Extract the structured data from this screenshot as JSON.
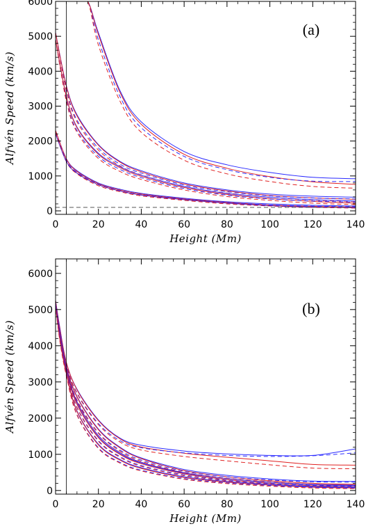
{
  "chart_data": [
    {
      "type": "line",
      "panel_label": "(a)",
      "xlabel": "Height (Mm)",
      "ylabel": "Alfvén Speed (km/s)",
      "xlim": [
        0,
        140
      ],
      "ylim": [
        -100,
        6000
      ],
      "xticks": [
        0,
        20,
        40,
        60,
        80,
        100,
        120,
        140
      ],
      "yticks": [
        0,
        1000,
        2000,
        3000,
        4000,
        5000,
        6000
      ],
      "vline_x": 5,
      "colors": {
        "blue": "#2a2aff",
        "red": "#e02020",
        "purple": "#5a18b0",
        "gray": "#555555"
      },
      "series": [
        {
          "color": "blue",
          "dash": false,
          "x": [
            0,
            3,
            5,
            10,
            15,
            20,
            30,
            40,
            60,
            80,
            100,
            120,
            140
          ],
          "values": [
            6000,
            6000,
            6000,
            6000,
            6000,
            5100,
            3450,
            2550,
            1700,
            1320,
            1100,
            960,
            920
          ]
        },
        {
          "color": "red",
          "dash": false,
          "x": [
            0,
            3,
            5,
            10,
            15,
            20,
            30,
            40,
            60,
            80,
            100,
            120,
            140
          ],
          "values": [
            6000,
            6000,
            6000,
            6000,
            6000,
            5050,
            3400,
            2480,
            1620,
            1220,
            980,
            830,
            760
          ]
        },
        {
          "color": "blue",
          "dash": true,
          "x": [
            0,
            3,
            5,
            10,
            15,
            20,
            30,
            40,
            60,
            80,
            100,
            120,
            140
          ],
          "values": [
            6000,
            6000,
            6000,
            6000,
            6000,
            4900,
            3280,
            2380,
            1560,
            1180,
            960,
            850,
            840
          ]
        },
        {
          "color": "red",
          "dash": true,
          "x": [
            0,
            3,
            5,
            10,
            15,
            20,
            30,
            40,
            60,
            80,
            100,
            120,
            140
          ],
          "values": [
            6000,
            6000,
            6000,
            6000,
            6000,
            4750,
            3150,
            2250,
            1450,
            1060,
            840,
            700,
            650
          ]
        },
        {
          "color": "blue",
          "dash": false,
          "x": [
            0,
            5,
            10,
            20,
            30,
            40,
            60,
            80,
            100,
            120,
            140
          ],
          "values": [
            5100,
            3600,
            2750,
            1900,
            1420,
            1150,
            800,
            600,
            480,
            420,
            390
          ]
        },
        {
          "color": "red",
          "dash": false,
          "x": [
            0,
            5,
            10,
            20,
            30,
            40,
            60,
            80,
            100,
            120,
            140
          ],
          "values": [
            5100,
            3580,
            2720,
            1880,
            1400,
            1120,
            770,
            570,
            440,
            370,
            330
          ]
        },
        {
          "color": "blue",
          "dash": true,
          "x": [
            0,
            5,
            10,
            20,
            30,
            40,
            60,
            80,
            100,
            120,
            140
          ],
          "values": [
            5100,
            3500,
            2600,
            1800,
            1340,
            1080,
            740,
            550,
            430,
            370,
            340
          ]
        },
        {
          "color": "red",
          "dash": true,
          "x": [
            0,
            5,
            10,
            20,
            30,
            40,
            60,
            80,
            100,
            120,
            140
          ],
          "values": [
            5100,
            3450,
            2550,
            1740,
            1290,
            1030,
            700,
            510,
            390,
            310,
            270
          ]
        },
        {
          "color": "blue",
          "dash": false,
          "x": [
            0,
            5,
            10,
            20,
            30,
            40,
            60,
            80,
            100,
            120,
            140
          ],
          "values": [
            4900,
            3300,
            2400,
            1650,
            1270,
            1020,
            700,
            500,
            390,
            320,
            280
          ]
        },
        {
          "color": "red",
          "dash": false,
          "x": [
            0,
            5,
            10,
            20,
            30,
            40,
            60,
            80,
            100,
            120,
            140
          ],
          "values": [
            4900,
            3280,
            2380,
            1620,
            1240,
            990,
            670,
            470,
            350,
            270,
            220
          ]
        },
        {
          "color": "blue",
          "dash": true,
          "x": [
            0,
            5,
            10,
            20,
            30,
            40,
            60,
            80,
            100,
            120,
            140
          ],
          "values": [
            4900,
            3200,
            2300,
            1560,
            1190,
            950,
            640,
            450,
            340,
            280,
            250
          ]
        },
        {
          "color": "red",
          "dash": true,
          "x": [
            0,
            5,
            10,
            20,
            30,
            40,
            60,
            80,
            100,
            120,
            140
          ],
          "values": [
            4900,
            3150,
            2250,
            1500,
            1130,
            900,
            600,
            410,
            300,
            220,
            180
          ]
        },
        {
          "color": "blue",
          "dash": false,
          "x": [
            0,
            5,
            10,
            20,
            30,
            40,
            60,
            80,
            100,
            120,
            140
          ],
          "values": [
            2300,
            1500,
            1150,
            800,
            620,
            500,
            360,
            260,
            200,
            160,
            140
          ]
        },
        {
          "color": "red",
          "dash": false,
          "x": [
            0,
            5,
            10,
            20,
            30,
            40,
            60,
            80,
            100,
            120,
            140
          ],
          "values": [
            2300,
            1490,
            1130,
            780,
            600,
            480,
            340,
            240,
            170,
            130,
            110
          ]
        },
        {
          "color": "blue",
          "dash": true,
          "x": [
            0,
            5,
            10,
            20,
            30,
            40,
            60,
            80,
            100,
            120,
            140
          ],
          "values": [
            2250,
            1450,
            1100,
            760,
            580,
            460,
            330,
            230,
            170,
            135,
            120
          ]
        },
        {
          "color": "red",
          "dash": true,
          "x": [
            0,
            5,
            10,
            20,
            30,
            40,
            60,
            80,
            100,
            120,
            140
          ],
          "values": [
            2250,
            1420,
            1060,
            720,
            550,
            430,
            300,
            200,
            140,
            100,
            80
          ]
        },
        {
          "color": "purple",
          "dash": false,
          "x": [
            0,
            5,
            10,
            20,
            30,
            40,
            60,
            80,
            100,
            120,
            140
          ],
          "values": [
            2200,
            1420,
            1080,
            750,
            570,
            450,
            320,
            220,
            150,
            110,
            90
          ]
        },
        {
          "color": "gray",
          "dash": true,
          "x": [
            0,
            140
          ],
          "values": [
            100,
            100
          ]
        }
      ]
    },
    {
      "type": "line",
      "panel_label": "(b)",
      "xlabel": "Height (Mm)",
      "ylabel": "Alfvén Speed (km/s)",
      "xlim": [
        0,
        140
      ],
      "ylim": [
        -100,
        6400
      ],
      "xticks": [
        0,
        20,
        40,
        60,
        80,
        100,
        120,
        140
      ],
      "yticks": [
        0,
        1000,
        2000,
        3000,
        4000,
        5000,
        6000
      ],
      "vline_x": 5,
      "colors": {
        "blue": "#2a2aff",
        "red": "#e02020",
        "purple": "#5a18b0"
      },
      "series": [
        {
          "color": "blue",
          "dash": false,
          "x": [
            0,
            2,
            5,
            10,
            20,
            30,
            40,
            60,
            80,
            100,
            120,
            140
          ],
          "values": [
            5250,
            4500,
            3550,
            2800,
            1950,
            1450,
            1250,
            1090,
            1010,
            970,
            970,
            1150
          ]
        },
        {
          "color": "red",
          "dash": false,
          "x": [
            0,
            2,
            5,
            10,
            20,
            30,
            40,
            60,
            80,
            100,
            120,
            140
          ],
          "values": [
            5250,
            4480,
            3550,
            2780,
            1930,
            1430,
            1200,
            1030,
            920,
            820,
            720,
            700
          ]
        },
        {
          "color": "blue",
          "dash": true,
          "x": [
            0,
            2,
            5,
            10,
            20,
            30,
            40,
            60,
            80,
            100,
            120,
            140
          ],
          "values": [
            5250,
            4450,
            3500,
            2700,
            1850,
            1380,
            1180,
            1040,
            970,
            940,
            960,
            1040
          ]
        },
        {
          "color": "red",
          "dash": true,
          "x": [
            0,
            2,
            5,
            10,
            20,
            30,
            40,
            60,
            80,
            100,
            120,
            140
          ],
          "values": [
            5250,
            4420,
            3480,
            2680,
            1820,
            1340,
            1120,
            940,
            820,
            710,
            620,
            600
          ]
        },
        {
          "color": "blue",
          "dash": false,
          "x": [
            0,
            2,
            5,
            10,
            20,
            30,
            40,
            60,
            80,
            100,
            120,
            140
          ],
          "values": [
            5200,
            4400,
            3450,
            2600,
            1700,
            1200,
            900,
            580,
            420,
            320,
            260,
            250
          ]
        },
        {
          "color": "red",
          "dash": false,
          "x": [
            0,
            2,
            5,
            10,
            20,
            30,
            40,
            60,
            80,
            100,
            120,
            140
          ],
          "values": [
            5200,
            4380,
            3430,
            2580,
            1680,
            1180,
            880,
            550,
            380,
            270,
            200,
            170
          ]
        },
        {
          "color": "blue",
          "dash": true,
          "x": [
            0,
            2,
            5,
            10,
            20,
            30,
            40,
            60,
            80,
            100,
            120,
            140
          ],
          "values": [
            5200,
            4350,
            3400,
            2500,
            1600,
            1120,
            840,
            530,
            380,
            290,
            240,
            230
          ]
        },
        {
          "color": "red",
          "dash": true,
          "x": [
            0,
            2,
            5,
            10,
            20,
            30,
            40,
            60,
            80,
            100,
            120,
            140
          ],
          "values": [
            5200,
            4330,
            3380,
            2480,
            1580,
            1090,
            810,
            500,
            340,
            240,
            170,
            140
          ]
        },
        {
          "color": "blue",
          "dash": false,
          "x": [
            0,
            2,
            5,
            10,
            20,
            30,
            40,
            60,
            80,
            100,
            120,
            140
          ],
          "values": [
            5150,
            4300,
            3350,
            2400,
            1480,
            1020,
            760,
            480,
            330,
            230,
            160,
            130
          ]
        },
        {
          "color": "red",
          "dash": false,
          "x": [
            0,
            2,
            5,
            10,
            20,
            30,
            40,
            60,
            80,
            100,
            120,
            140
          ],
          "values": [
            5150,
            4280,
            3330,
            2380,
            1460,
            1000,
            740,
            460,
            300,
            200,
            130,
            100
          ]
        },
        {
          "color": "blue",
          "dash": true,
          "x": [
            0,
            2,
            5,
            10,
            20,
            30,
            40,
            60,
            80,
            100,
            120,
            140
          ],
          "values": [
            5150,
            4250,
            3300,
            2300,
            1380,
            940,
            690,
            430,
            290,
            200,
            140,
            120
          ]
        },
        {
          "color": "red",
          "dash": true,
          "x": [
            0,
            2,
            5,
            10,
            20,
            30,
            40,
            60,
            80,
            100,
            120,
            140
          ],
          "values": [
            5150,
            4230,
            3280,
            2280,
            1360,
            920,
            670,
            410,
            270,
            180,
            110,
            90
          ]
        },
        {
          "color": "blue",
          "dash": false,
          "x": [
            0,
            2,
            5,
            10,
            20,
            30,
            40,
            60,
            80,
            100,
            120,
            140
          ],
          "values": [
            5100,
            4200,
            3250,
            2200,
            1280,
            860,
            630,
            380,
            250,
            170,
            110,
            90
          ]
        },
        {
          "color": "red",
          "dash": false,
          "x": [
            0,
            2,
            5,
            10,
            20,
            30,
            40,
            60,
            80,
            100,
            120,
            140
          ],
          "values": [
            5100,
            4180,
            3230,
            2180,
            1260,
            840,
            610,
            360,
            230,
            150,
            90,
            70
          ]
        },
        {
          "color": "blue",
          "dash": true,
          "x": [
            0,
            2,
            5,
            10,
            20,
            30,
            40,
            60,
            80,
            100,
            120,
            140
          ],
          "values": [
            5100,
            4150,
            3200,
            2100,
            1180,
            780,
            560,
            330,
            210,
            140,
            90,
            70
          ]
        },
        {
          "color": "red",
          "dash": true,
          "x": [
            0,
            2,
            5,
            10,
            20,
            30,
            40,
            60,
            80,
            100,
            120,
            140
          ],
          "values": [
            5100,
            4130,
            3180,
            2080,
            1160,
            760,
            540,
            310,
            190,
            120,
            70,
            50
          ]
        },
        {
          "color": "purple",
          "dash": false,
          "x": [
            0,
            2,
            5,
            10,
            20,
            30,
            40,
            60,
            80,
            100,
            120,
            140
          ],
          "values": [
            5180,
            4350,
            3400,
            2450,
            1520,
            1050,
            780,
            490,
            330,
            230,
            170,
            150
          ]
        }
      ]
    }
  ]
}
